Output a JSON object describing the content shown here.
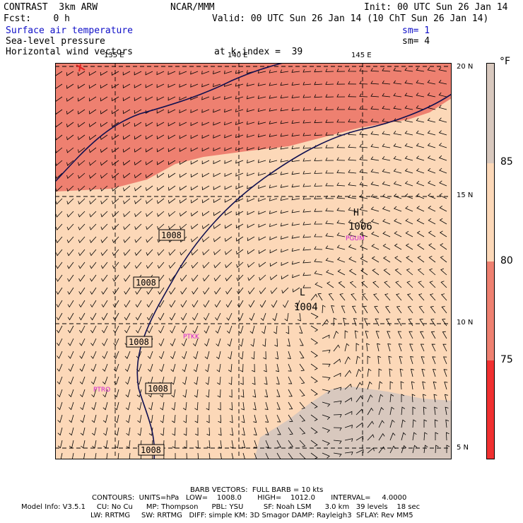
{
  "header": {
    "model": "CONTRAST  3km ARW",
    "org": "NCAR/MMM",
    "init": "Init: 00 UTC Sun 26 Jan 14",
    "fcst": "Fcst:    0 h",
    "valid": "Valid: 00 UTC Sun 26 Jan 14 (10 ChT Sun 26 Jan 14)",
    "field1": "Surface air temperature",
    "field2": "Sea-level pressure",
    "field3": "Horizontal wind vectors",
    "sm1": "sm= 1",
    "sm2": "sm= 4",
    "level": "at k-index =  39"
  },
  "map": {
    "lon_labels": [
      "135 E",
      "140 E",
      "145 E"
    ],
    "lat_labels": [
      "20 N",
      "15 N",
      "10 N",
      "5 N"
    ],
    "stations": [
      "PGUM",
      "PTKK",
      "PTRO"
    ],
    "pressure_labels": [
      "1008",
      "1008",
      "1008",
      "1008",
      "1008"
    ],
    "high": {
      "symbol": "H",
      "value": "1006"
    },
    "low": {
      "symbol": "L",
      "value": "1004"
    },
    "colors": {
      "t75": "#ee8070",
      "t80": "#fcd8b8",
      "t85": "#d8c8be",
      "contour": "#101050",
      "station": "#d020d0"
    }
  },
  "legend": {
    "unit": "°F",
    "ticks": [
      "85",
      "80",
      "75"
    ],
    "bands": [
      {
        "color": "#d8c8be"
      },
      {
        "color": "#fcd8b8"
      },
      {
        "color": "#ee8070"
      },
      {
        "color": "#f03030"
      }
    ]
  },
  "footer": {
    "line1": "BARB VECTORS:  FULL BARB = 10 kts",
    "line2": "CONTOURS:  UNITS=hPa   LOW=    1008.0       HIGH=    1012.0       INTERVAL=     4.0000",
    "line3": "Model Info: V3.5.1     CU: No Cu      MP: Thompson      PBL: YSU         SF: Noah LSM      3.0 km   39 levels    18 sec",
    "line4": "LW: RRTMG     SW: RRTMG   DIFF: simple KM: 3D Smagor DAMP: Rayleigh3  SFLAY: Rev MM5"
  }
}
